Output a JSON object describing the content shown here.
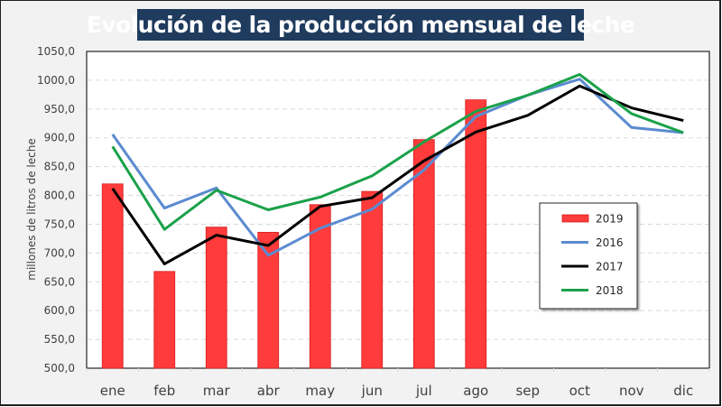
{
  "chart_data": {
    "type": "bar",
    "title": "Evolución de la producción mensual de leche",
    "xlabel": "",
    "ylabel": "millones de litros de leche",
    "ylim": [
      500,
      1050
    ],
    "ytick_step": 50,
    "ytick_labels": [
      "500,0",
      "550,0",
      "600,0",
      "650,0",
      "700,0",
      "750,0",
      "800,0",
      "850,0",
      "900,0",
      "950,0",
      "1000,0",
      "1050,0"
    ],
    "grid": true,
    "legend_position": "right",
    "categories": [
      "ene",
      "feb",
      "mar",
      "abr",
      "may",
      "jun",
      "jul",
      "ago",
      "sep",
      "oct",
      "nov",
      "dic"
    ],
    "series": [
      {
        "name": "2019",
        "type": "bar",
        "color": "#ff3b3b",
        "values": [
          820,
          668,
          745,
          736,
          784,
          807,
          897,
          966,
          null,
          null,
          null,
          null
        ]
      },
      {
        "name": "2016",
        "type": "line",
        "color": "#5b8bd0",
        "values": [
          906,
          778,
          813,
          696,
          743,
          776,
          844,
          937,
          974,
          1002,
          918,
          909
        ]
      },
      {
        "name": "2017",
        "type": "line",
        "color": "#000000",
        "values": [
          812,
          681,
          731,
          713,
          781,
          796,
          860,
          910,
          939,
          990,
          952,
          930
        ]
      },
      {
        "name": "2018",
        "type": "line",
        "color": "#1aa14a",
        "values": [
          885,
          741,
          809,
          775,
          797,
          834,
          893,
          946,
          974,
          1010,
          942,
          909
        ]
      }
    ]
  }
}
